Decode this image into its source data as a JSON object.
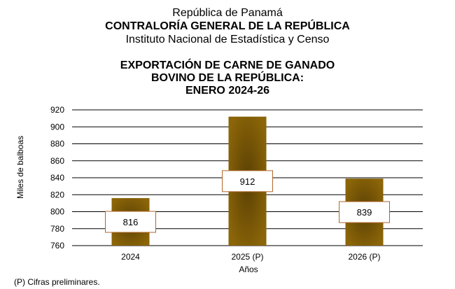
{
  "header": {
    "line1": "República de Panamá",
    "line2": "CONTRALORÍA GENERAL DE LA REPÚBLICA",
    "line3": "Instituto  Nacional de Estadística  y  Censo"
  },
  "footnote": "(P) Cifras  preliminares.",
  "colors": {
    "bar": "#8B6508",
    "bar_dark": "#5a4004",
    "label_border": "#b0662a",
    "grid": "#000000"
  },
  "chart_data": {
    "type": "bar",
    "title": [
      "EXPORTACIÓN DE CARNE DE GANADO",
      "BOVINO DE LA REPÚBLICA:",
      "ENERO 2024-26"
    ],
    "categories": [
      "2024",
      "2025 (P)",
      "2026 (P)"
    ],
    "values": [
      816,
      912,
      839
    ],
    "data_labels": [
      "816",
      "912",
      "839"
    ],
    "xlabel": "Años",
    "ylabel": "Miles de balboas",
    "ylim": [
      760,
      920
    ],
    "yticks": [
      760,
      780,
      800,
      820,
      840,
      860,
      880,
      900,
      920
    ],
    "grid": true,
    "legend": "none"
  }
}
